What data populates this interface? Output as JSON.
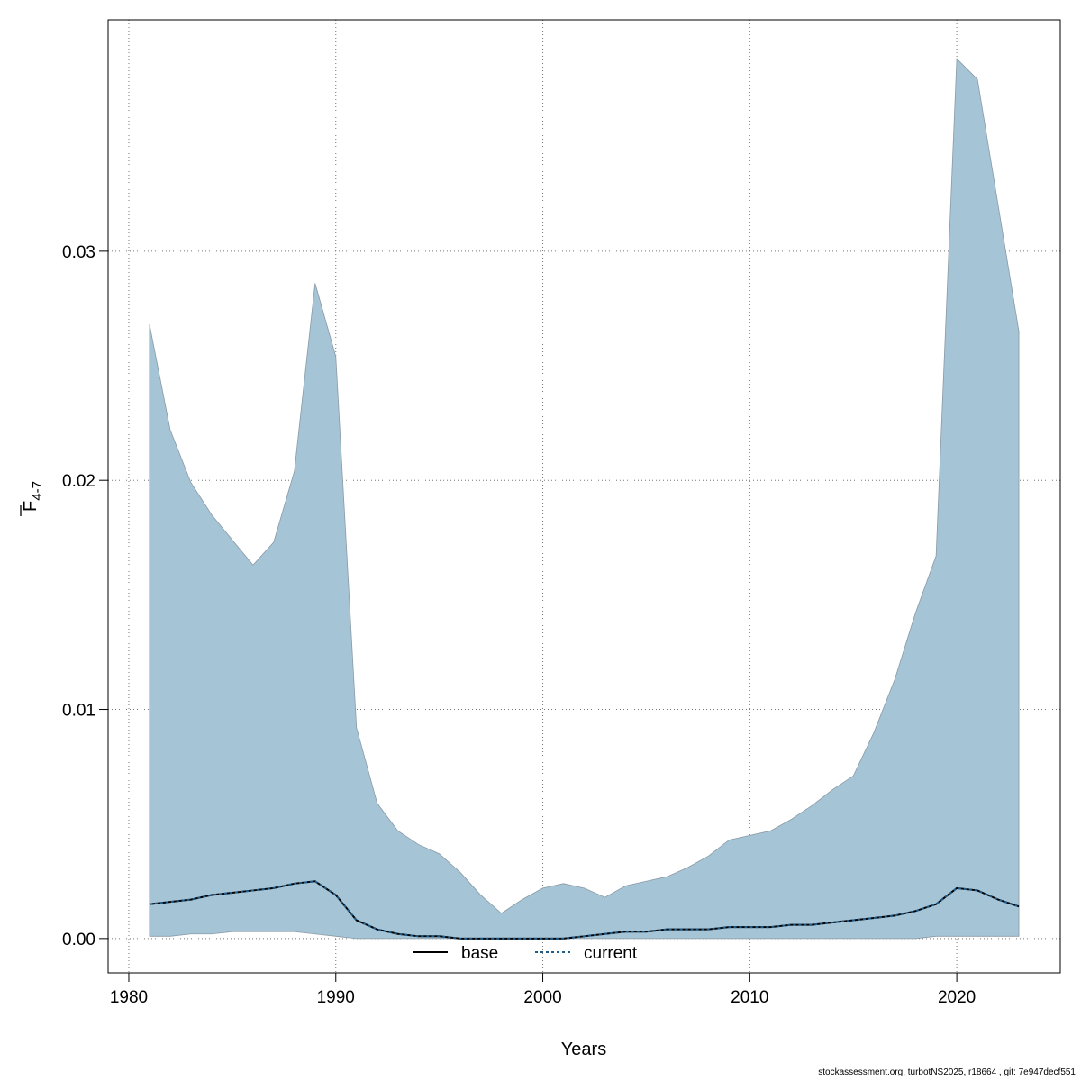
{
  "chart_data": {
    "type": "area",
    "xlabel": "Years",
    "ylabel": "F",
    "ylabel_subscript": "4-7",
    "xlim": [
      1979,
      2025
    ],
    "ylim": [
      -0.0015,
      0.0401
    ],
    "x_ticks": [
      1980,
      1990,
      2000,
      2010,
      2020
    ],
    "x_tick_labels": [
      "1980",
      "1990",
      "2000",
      "2010",
      "2020"
    ],
    "y_ticks": [
      0.0,
      0.01,
      0.02,
      0.03
    ],
    "y_tick_labels": [
      "0.00",
      "0.01",
      "0.02",
      "0.03"
    ],
    "grid": true,
    "legend_position": "bottom",
    "colors": {
      "band_fill": "#a5c4d5",
      "band_edge": "#8a9aa6",
      "base": "#000000",
      "current": "#1f5c8a",
      "grid": "#777777"
    },
    "x": [
      1981,
      1982,
      1983,
      1984,
      1985,
      1986,
      1987,
      1988,
      1989,
      1990,
      1991,
      1992,
      1993,
      1994,
      1995,
      1996,
      1997,
      1998,
      1999,
      2000,
      2001,
      2002,
      2003,
      2004,
      2005,
      2006,
      2007,
      2008,
      2009,
      2010,
      2011,
      2012,
      2013,
      2014,
      2015,
      2016,
      2017,
      2018,
      2019,
      2020,
      2021,
      2022,
      2023
    ],
    "band_upper": [
      0.0268,
      0.0222,
      0.0199,
      0.0185,
      0.0174,
      0.0163,
      0.0173,
      0.0204,
      0.0286,
      0.0254,
      0.0092,
      0.0059,
      0.0047,
      0.0041,
      0.0037,
      0.0029,
      0.0019,
      0.0011,
      0.0017,
      0.0022,
      0.0024,
      0.0022,
      0.0018,
      0.0023,
      0.0025,
      0.0027,
      0.0031,
      0.0036,
      0.0043,
      0.0045,
      0.0047,
      0.0052,
      0.0058,
      0.0065,
      0.0071,
      0.009,
      0.0113,
      0.0142,
      0.0167,
      0.0384,
      0.0375,
      0.032,
      0.0265
    ],
    "band_lower": [
      0.0001,
      0.0001,
      0.0002,
      0.0002,
      0.0003,
      0.0003,
      0.0003,
      0.0003,
      0.0002,
      0.0001,
      0.0,
      0.0,
      0.0,
      0.0,
      0.0,
      0.0,
      0.0,
      0.0,
      0.0,
      0.0,
      0.0,
      0.0,
      0.0,
      0.0,
      0.0,
      0.0,
      0.0,
      0.0,
      0.0,
      0.0,
      0.0,
      0.0,
      0.0,
      0.0,
      0.0,
      0.0,
      0.0,
      0.0,
      0.0001,
      0.0001,
      0.0001,
      0.0001,
      0.0001
    ],
    "series": [
      {
        "name": "base",
        "style": "solid",
        "values": [
          0.0015,
          0.0016,
          0.0017,
          0.0019,
          0.002,
          0.0021,
          0.0022,
          0.0024,
          0.0025,
          0.0019,
          0.0008,
          0.0004,
          0.0002,
          0.0001,
          0.0001,
          0.0,
          0.0,
          0.0,
          0.0,
          0.0,
          0.0,
          0.0001,
          0.0002,
          0.0003,
          0.0003,
          0.0004,
          0.0004,
          0.0004,
          0.0005,
          0.0005,
          0.0005,
          0.0006,
          0.0006,
          0.0007,
          0.0008,
          0.0009,
          0.001,
          0.0012,
          0.0015,
          0.0022,
          0.0021,
          0.0017,
          0.0014
        ]
      },
      {
        "name": "current",
        "style": "dashed",
        "values": [
          0.0015,
          0.0016,
          0.0017,
          0.0019,
          0.002,
          0.0021,
          0.0022,
          0.0024,
          0.0025,
          0.0019,
          0.0008,
          0.0004,
          0.0002,
          0.0001,
          0.0001,
          0.0,
          0.0,
          0.0,
          0.0,
          0.0,
          0.0,
          0.0001,
          0.0002,
          0.0003,
          0.0003,
          0.0004,
          0.0004,
          0.0004,
          0.0005,
          0.0005,
          0.0005,
          0.0006,
          0.0006,
          0.0007,
          0.0008,
          0.0009,
          0.001,
          0.0012,
          0.0015,
          0.0022,
          0.0021,
          0.0017,
          0.0014
        ]
      }
    ]
  },
  "footer": "stockassessment.org, turbotNS2025, r18664 , git: 7e947decf551"
}
